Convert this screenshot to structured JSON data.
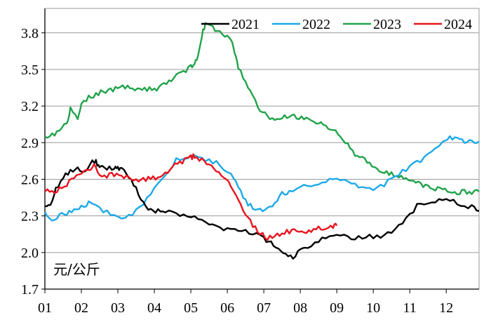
{
  "chart_data": {
    "type": "line",
    "title": "",
    "xlabel": "",
    "ylabel": "",
    "unit_label": "元/公斤",
    "x_ticks": [
      "01",
      "02",
      "03",
      "04",
      "05",
      "06",
      "07",
      "08",
      "09",
      "10",
      "11",
      "12"
    ],
    "xlim": [
      1,
      12.9
    ],
    "y_ticks": [
      "1.7",
      "2.0",
      "2.3",
      "2.6",
      "2.9",
      "3.2",
      "3.5",
      "3.8"
    ],
    "ylim": [
      1.7,
      4.0
    ],
    "grid": "horizontal",
    "legend_position": "top-right",
    "series": [
      {
        "name": "2021",
        "color": "#000000",
        "x": [
          1.0,
          1.15,
          1.3,
          1.5,
          1.7,
          1.9,
          2.1,
          2.3,
          2.4,
          2.5,
          2.7,
          2.9,
          3.0,
          3.1,
          3.3,
          3.5,
          3.7,
          3.9,
          4.1,
          4.3,
          4.6,
          4.9,
          5.2,
          5.5,
          5.8,
          6.1,
          6.4,
          6.7,
          7.0,
          7.2,
          7.4,
          7.6,
          7.8,
          8.0,
          8.2,
          8.5,
          8.8,
          9.1,
          9.4,
          9.7,
          10.0,
          10.3,
          10.6,
          10.9,
          11.2,
          11.5,
          11.8,
          12.1,
          12.4,
          12.7,
          12.9
        ],
        "values": [
          2.38,
          2.4,
          2.52,
          2.62,
          2.66,
          2.7,
          2.66,
          2.74,
          2.74,
          2.7,
          2.69,
          2.68,
          2.7,
          2.68,
          2.62,
          2.52,
          2.4,
          2.34,
          2.34,
          2.33,
          2.32,
          2.31,
          2.28,
          2.24,
          2.2,
          2.19,
          2.18,
          2.16,
          2.11,
          2.08,
          2.03,
          1.98,
          1.96,
          2.01,
          2.05,
          2.09,
          2.13,
          2.14,
          2.12,
          2.12,
          2.13,
          2.14,
          2.2,
          2.28,
          2.38,
          2.42,
          2.43,
          2.42,
          2.4,
          2.37,
          2.34
        ]
      },
      {
        "name": "2022",
        "color": "#1ca9e8",
        "x": [
          1.0,
          1.2,
          1.4,
          1.6,
          1.8,
          2.0,
          2.2,
          2.5,
          2.8,
          3.1,
          3.4,
          3.7,
          4.0,
          4.3,
          4.6,
          4.9,
          5.2,
          5.5,
          5.8,
          6.1,
          6.3,
          6.5,
          6.7,
          6.9,
          7.1,
          7.3,
          7.5,
          7.7,
          8.0,
          8.3,
          8.6,
          8.9,
          9.2,
          9.5,
          9.8,
          10.1,
          10.4,
          10.7,
          11.0,
          11.3,
          11.6,
          11.9,
          12.1,
          12.3,
          12.5,
          12.7,
          12.9
        ],
        "values": [
          2.33,
          2.28,
          2.3,
          2.32,
          2.35,
          2.38,
          2.4,
          2.36,
          2.32,
          2.29,
          2.32,
          2.4,
          2.52,
          2.64,
          2.76,
          2.79,
          2.78,
          2.76,
          2.72,
          2.64,
          2.54,
          2.42,
          2.36,
          2.34,
          2.35,
          2.42,
          2.48,
          2.5,
          2.54,
          2.56,
          2.58,
          2.6,
          2.58,
          2.55,
          2.52,
          2.52,
          2.58,
          2.64,
          2.7,
          2.76,
          2.83,
          2.9,
          2.94,
          2.93,
          2.91,
          2.9,
          2.91
        ]
      },
      {
        "name": "2023",
        "color": "#21a34a",
        "x": [
          1.0,
          1.2,
          1.4,
          1.6,
          1.7,
          1.9,
          2.0,
          2.2,
          2.4,
          2.6,
          2.8,
          3.0,
          3.2,
          3.4,
          3.6,
          3.8,
          4.0,
          4.2,
          4.4,
          4.6,
          4.8,
          5.0,
          5.1,
          5.2,
          5.3,
          5.4,
          5.6,
          5.8,
          6.0,
          6.1,
          6.2,
          6.3,
          6.5,
          6.7,
          6.9,
          7.1,
          7.3,
          7.5,
          7.7,
          7.9,
          8.1,
          8.3,
          8.5,
          8.7,
          8.9,
          9.1,
          9.3,
          9.5,
          9.7,
          9.9,
          10.1,
          10.3,
          10.5,
          10.7,
          10.9,
          11.1,
          11.3,
          11.5,
          11.7,
          11.9,
          12.1,
          12.3,
          12.5,
          12.7,
          12.9
        ],
        "values": [
          2.95,
          2.96,
          3.0,
          3.05,
          3.17,
          3.1,
          3.22,
          3.27,
          3.3,
          3.32,
          3.33,
          3.35,
          3.36,
          3.33,
          3.33,
          3.34,
          3.33,
          3.36,
          3.4,
          3.44,
          3.48,
          3.52,
          3.54,
          3.62,
          3.78,
          3.87,
          3.84,
          3.8,
          3.78,
          3.74,
          3.64,
          3.52,
          3.4,
          3.28,
          3.17,
          3.11,
          3.09,
          3.1,
          3.12,
          3.11,
          3.09,
          3.08,
          3.06,
          3.03,
          3.0,
          2.95,
          2.88,
          2.81,
          2.77,
          2.72,
          2.68,
          2.66,
          2.64,
          2.62,
          2.6,
          2.58,
          2.56,
          2.54,
          2.52,
          2.51,
          2.5,
          2.49,
          2.5,
          2.49,
          2.5
        ]
      },
      {
        "name": "2024",
        "color": "#e8141e",
        "x": [
          1.0,
          1.2,
          1.4,
          1.6,
          1.8,
          2.0,
          2.2,
          2.35,
          2.5,
          2.7,
          2.9,
          3.1,
          3.3,
          3.5,
          3.7,
          3.9,
          4.1,
          4.3,
          4.5,
          4.7,
          4.9,
          5.0,
          5.1,
          5.3,
          5.5,
          5.7,
          5.9,
          6.1,
          6.3,
          6.5,
          6.7,
          6.9,
          7.1,
          7.3,
          7.5,
          7.7,
          7.9,
          8.1,
          8.3,
          8.5,
          8.7,
          8.9,
          9.0
        ],
        "values": [
          2.5,
          2.5,
          2.52,
          2.56,
          2.61,
          2.63,
          2.68,
          2.72,
          2.64,
          2.63,
          2.64,
          2.63,
          2.61,
          2.6,
          2.6,
          2.61,
          2.62,
          2.64,
          2.7,
          2.74,
          2.76,
          2.78,
          2.79,
          2.76,
          2.72,
          2.68,
          2.62,
          2.54,
          2.44,
          2.32,
          2.22,
          2.16,
          2.12,
          2.13,
          2.16,
          2.17,
          2.18,
          2.17,
          2.18,
          2.2,
          2.21,
          2.22,
          2.22
        ]
      }
    ]
  }
}
